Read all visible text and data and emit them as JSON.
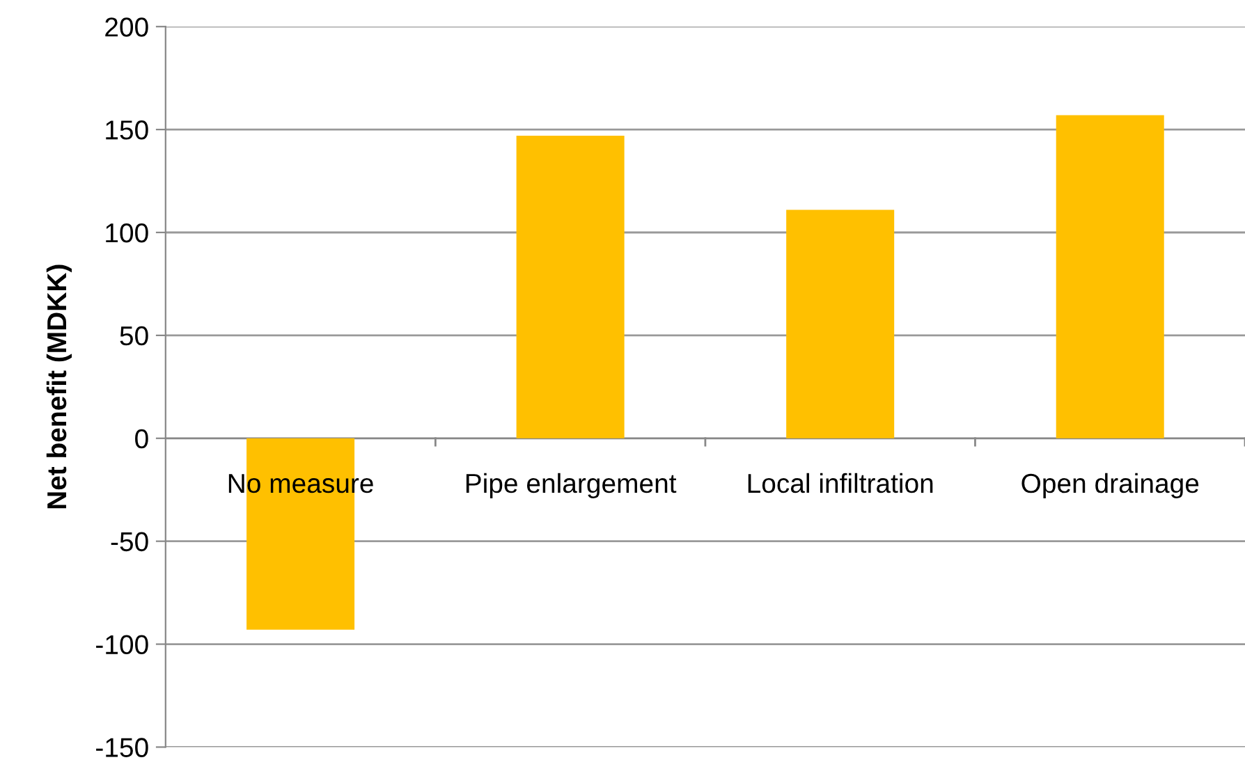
{
  "chart_data": {
    "type": "bar",
    "ylabel": "Net benefit (MDKK)",
    "categories": [
      "No measure",
      "Pipe enlargement",
      "Local infiltration",
      "Open drainage"
    ],
    "values": [
      -93,
      147,
      111,
      157
    ],
    "color": "#ffc000",
    "ylim": [
      -150,
      200
    ],
    "yticks": [
      -150,
      -100,
      -50,
      0,
      50,
      100,
      150,
      200
    ],
    "grid": "y",
    "legend": false
  }
}
